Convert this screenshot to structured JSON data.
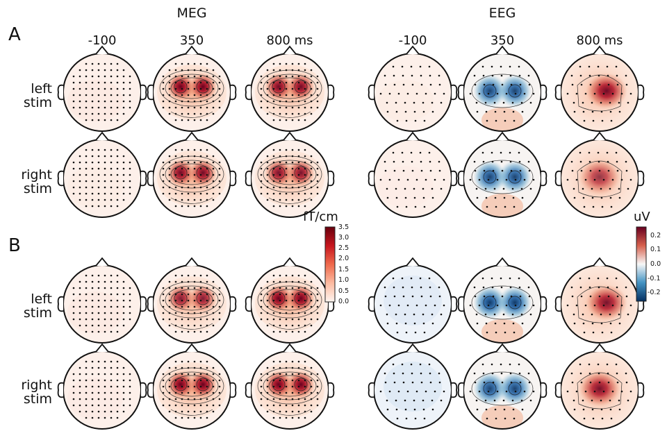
{
  "panels": [
    "A",
    "B"
  ],
  "headers": {
    "meg": "MEG",
    "eeg": "EEG"
  },
  "column_labels": [
    "-100",
    "350",
    "800 ms",
    "-100",
    "350",
    "800 ms"
  ],
  "row_labels": [
    {
      "line1": "left",
      "line2": "stim"
    },
    {
      "line1": "right",
      "line2": "stim"
    },
    {
      "line1": "left",
      "line2": "stim"
    },
    {
      "line1": "right",
      "line2": "stim"
    }
  ],
  "meg_colorbar": {
    "unit": "fT/cm",
    "ticks": [
      "3.5",
      "3.0",
      "2.5",
      "2.0",
      "1.5",
      "1.0",
      "0.5",
      "0.0"
    ],
    "min": 0.0,
    "max": 3.5
  },
  "eeg_colorbar": {
    "unit": "uV",
    "ticks": [
      "0.2",
      "0.1",
      "0.0",
      "-0.1",
      "-0.2"
    ],
    "min": -0.25,
    "max": 0.25
  },
  "colors": {
    "positive": "#b2182b",
    "negative": "#2166ac",
    "neutral": "#f7f7f7"
  },
  "maps": [
    [
      {
        "t": "flat",
        "a": 0.12
      },
      {
        "t": "bil",
        "a": 1.0
      },
      {
        "t": "bil",
        "a": 0.95
      },
      {
        "t": "flat",
        "a": 0.08
      },
      {
        "t": "eegneg",
        "a": 0.9
      },
      {
        "t": "eegpos",
        "a": 0.95
      }
    ],
    [
      {
        "t": "flat",
        "a": 0.08
      },
      {
        "t": "bil",
        "a": 0.95
      },
      {
        "t": "bil",
        "a": 0.9
      },
      {
        "t": "flat",
        "a": 0.06
      },
      {
        "t": "eegneg",
        "a": 0.9
      },
      {
        "t": "eegposc",
        "a": 0.7
      }
    ],
    [
      {
        "t": "flat",
        "a": 0.12
      },
      {
        "t": "bil",
        "a": 0.85
      },
      {
        "t": "bil",
        "a": 1.0
      },
      {
        "t": "flatblue",
        "a": 0.1
      },
      {
        "t": "eegneg",
        "a": 0.95
      },
      {
        "t": "eegpos",
        "a": 0.9
      }
    ],
    [
      {
        "t": "flat",
        "a": 0.1
      },
      {
        "t": "bil",
        "a": 1.0
      },
      {
        "t": "bil",
        "a": 1.0
      },
      {
        "t": "flatblue",
        "a": 0.12
      },
      {
        "t": "eegneg",
        "a": 0.9
      },
      {
        "t": "eegposc",
        "a": 0.9
      }
    ]
  ]
}
